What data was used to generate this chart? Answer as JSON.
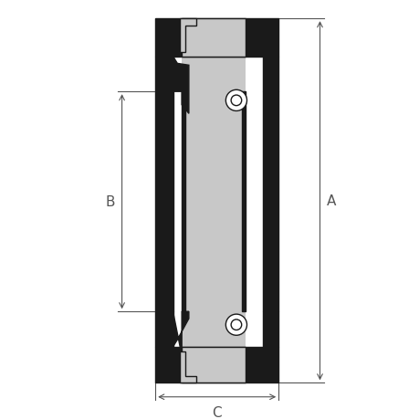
{
  "bg_color": "#ffffff",
  "line_color": "#1a1a1a",
  "fill_black": "#1a1a1a",
  "fill_gray": "#c8c8c8",
  "fill_white": "#ffffff",
  "dim_color": "#555555",
  "label_A": "A",
  "label_B": "B",
  "label_C": "C",
  "figsize": [
    4.6,
    4.6
  ],
  "dpi": 100
}
